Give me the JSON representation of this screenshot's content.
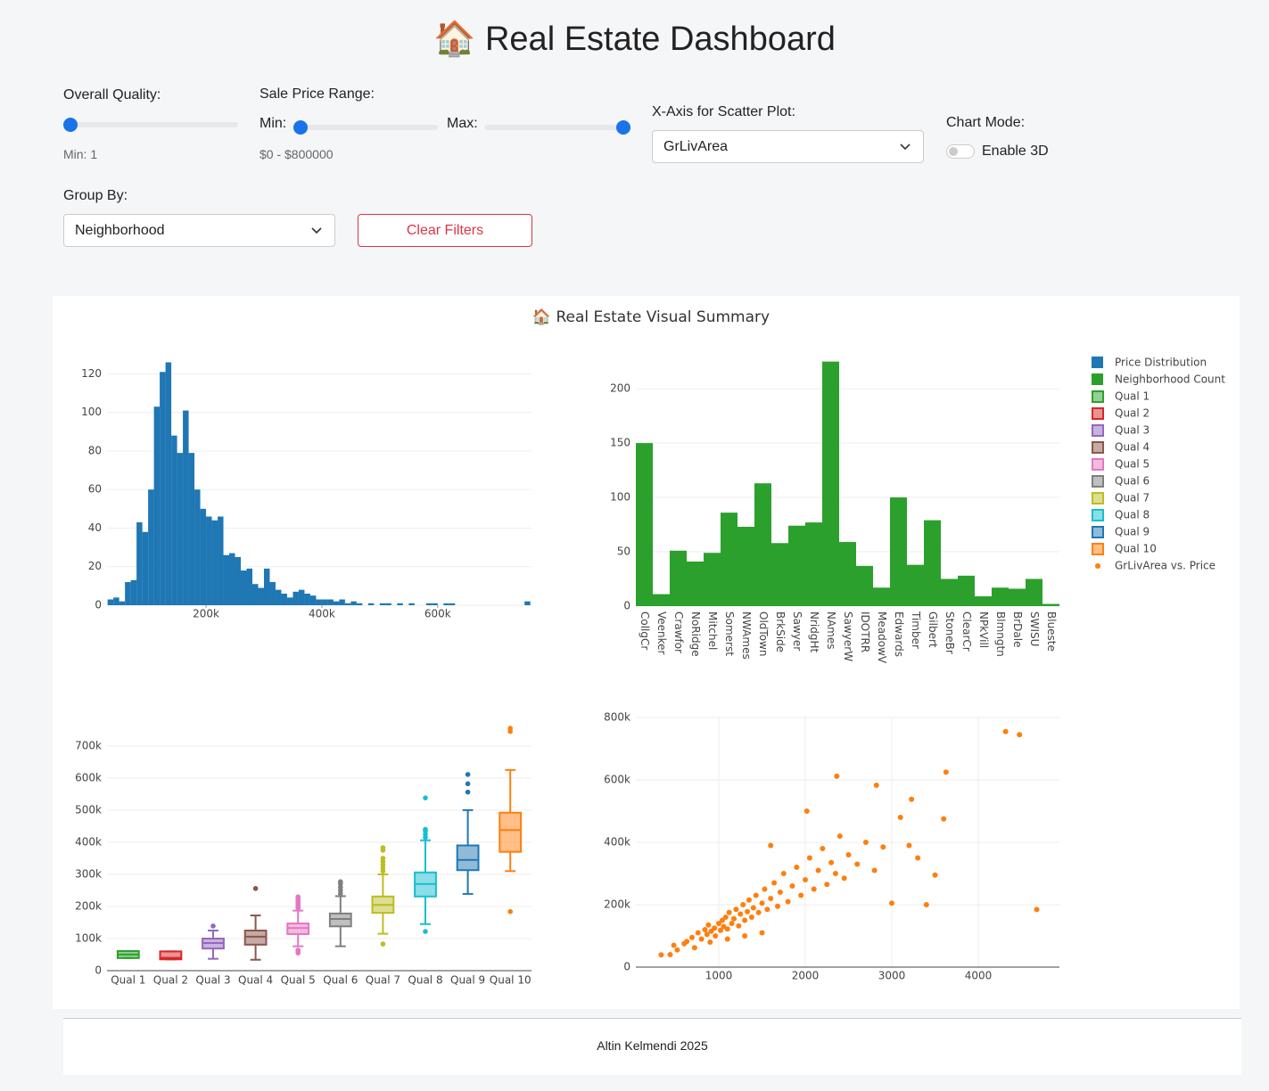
{
  "header": {
    "title": "🏠 Real Estate Dashboard"
  },
  "controls": {
    "overall_quality": {
      "label": "Overall Quality:",
      "readout": "Min: 1"
    },
    "sale_price": {
      "label": "Sale Price Range:",
      "min_label": "Min:",
      "max_label": "Max:",
      "readout": "$0 - $800000"
    },
    "x_axis": {
      "label": "X-Axis for Scatter Plot:",
      "value": "GrLivArea"
    },
    "chart_mode": {
      "label": "Chart Mode:",
      "toggle": "Enable 3D"
    },
    "group_by": {
      "label": "Group By:",
      "value": "Neighborhood"
    },
    "clear_button": "Clear Filters"
  },
  "figure": {
    "title": "🏠 Real Estate Visual Summary",
    "legend": "right"
  },
  "chart_data": [
    {
      "type": "histogram",
      "bins": [
        30000,
        40000,
        50000,
        60000,
        70000,
        80000,
        90000,
        100000,
        110000,
        120000,
        130000,
        140000,
        150000,
        160000,
        170000,
        180000,
        190000,
        200000,
        210000,
        220000,
        230000,
        240000,
        250000,
        260000,
        270000,
        280000,
        290000,
        300000,
        310000,
        320000,
        330000,
        340000,
        350000,
        360000,
        370000,
        380000,
        390000,
        400000,
        410000,
        420000,
        430000,
        440000,
        450000,
        460000,
        470000,
        480000,
        490000,
        500000,
        510000,
        520000,
        530000,
        540000,
        550000,
        560000,
        570000,
        580000,
        590000,
        600000,
        610000,
        620000,
        630000,
        640000,
        650000,
        660000,
        670000,
        680000,
        690000,
        700000,
        710000,
        720000,
        730000,
        740000,
        750000,
        760000
      ],
      "series": [
        {
          "name": "Price Distribution",
          "color": "#1f77b4",
          "values": [
            3,
            4,
            2,
            12,
            13,
            43,
            38,
            60,
            103,
            121,
            126,
            88,
            79,
            101,
            79,
            60,
            50,
            46,
            44,
            46,
            26,
            27,
            25,
            18,
            19,
            11,
            9,
            19,
            12,
            8,
            6,
            4,
            7,
            8,
            6,
            5,
            3,
            3,
            3,
            2,
            3,
            1,
            2,
            1,
            0,
            1,
            0,
            1,
            1,
            0,
            1,
            0,
            1,
            0,
            0,
            1,
            1,
            0,
            1,
            1,
            0,
            0,
            0,
            0,
            0,
            0,
            0,
            0,
            0,
            0,
            0,
            0,
            2
          ]
        }
      ],
      "xlim": [
        29000,
        762000
      ],
      "xticks": [
        {
          "value": 200000,
          "label": "200k"
        },
        {
          "value": 400000,
          "label": "400k"
        },
        {
          "value": 600000,
          "label": "600k"
        }
      ],
      "ylim": [
        0,
        129
      ],
      "yticks": [
        0,
        20,
        40,
        60,
        80,
        100,
        120
      ],
      "grid": true
    },
    {
      "type": "bar",
      "categories": [
        "CollgCr",
        "Veenker",
        "Crawfor",
        "NoRidge",
        "Mitchel",
        "Somerst",
        "NWAmes",
        "OldTown",
        "BrkSide",
        "Sawyer",
        "NridgHt",
        "NAmes",
        "SawyerW",
        "IDOTRR",
        "MeadowV",
        "Edwards",
        "Timber",
        "Gilbert",
        "StoneBr",
        "ClearCr",
        "NPkVill",
        "Blmngtn",
        "BrDale",
        "SWISU",
        "Blueste"
      ],
      "series": [
        {
          "name": "Neighborhood Count",
          "color": "#2ca02c",
          "values": [
            150,
            11,
            51,
            41,
            49,
            86,
            73,
            113,
            58,
            74,
            77,
            225,
            59,
            37,
            17,
            100,
            38,
            79,
            25,
            28,
            9,
            17,
            16,
            25,
            2
          ]
        }
      ],
      "ylim": [
        0,
        237
      ],
      "yticks": [
        0,
        50,
        100,
        150,
        200
      ],
      "grid": true
    },
    {
      "type": "box",
      "series": [
        {
          "name": "Qual 1",
          "color": "#2ca02c",
          "min": 39300,
          "q1": 39300,
          "median": 50150,
          "q3": 61000,
          "max": 61000,
          "outliers": []
        },
        {
          "name": "Qual 2",
          "color": "#d62728",
          "min": 35311,
          "q1": 35311,
          "median": 40000,
          "q3": 60000,
          "max": 60000,
          "outliers": []
        },
        {
          "name": "Qual 3",
          "color": "#9467bd",
          "min": 37000,
          "q1": 69000,
          "median": 86000,
          "q3": 100000,
          "max": 125000,
          "outliers": [
            139000
          ]
        },
        {
          "name": "Qual 4",
          "color": "#8c564b",
          "min": 34000,
          "q1": 81000,
          "median": 106000,
          "q3": 125000,
          "max": 172000,
          "outliers": [
            256000
          ]
        },
        {
          "name": "Qual 5",
          "color": "#e377c2",
          "min": 76000,
          "q1": 114000,
          "median": 133000,
          "q3": 147000,
          "max": 187000,
          "outliers": [
            55000,
            60000,
            64000,
            195000,
            200000,
            205000,
            210000,
            215000,
            220000,
            225000,
            230000
          ]
        },
        {
          "name": "Qual 6",
          "color": "#7f7f7f",
          "min": 76000,
          "q1": 138000,
          "median": 161000,
          "q3": 178000,
          "max": 232000,
          "outliers": [
            240000,
            250000,
            260000,
            270000,
            277000
          ]
        },
        {
          "name": "Qual 7",
          "color": "#bcbd22",
          "min": 115000,
          "q1": 180000,
          "median": 205000,
          "q3": 231000,
          "max": 300000,
          "outliers": [
            83000,
            310000,
            320000,
            330000,
            340000,
            350000,
            375000,
            383000
          ]
        },
        {
          "name": "Qual 8",
          "color": "#17becf",
          "min": 145000,
          "q1": 231000,
          "median": 270000,
          "q3": 306000,
          "max": 406000,
          "outliers": [
            122000,
            415000,
            425000,
            435000,
            440000,
            538000
          ]
        },
        {
          "name": "Qual 9",
          "color": "#1f77b4",
          "min": 239000,
          "q1": 313000,
          "median": 345000,
          "q3": 390000,
          "max": 500000,
          "outliers": [
            556000,
            582000,
            611000
          ]
        },
        {
          "name": "Qual 10",
          "color": "#ff7f0e",
          "min": 310000,
          "q1": 370000,
          "median": 438000,
          "q3": 492000,
          "max": 625000,
          "outliers": [
            184000,
            745000,
            755000
          ]
        }
      ],
      "ylim": [
        0,
        780000
      ],
      "yticks": [
        0,
        {
          "value": 100000,
          "label": "100k"
        },
        {
          "value": 200000,
          "label": "200k"
        },
        {
          "value": 300000,
          "label": "300k"
        },
        {
          "value": 400000,
          "label": "400k"
        },
        {
          "value": 500000,
          "label": "500k"
        },
        {
          "value": 600000,
          "label": "600k"
        },
        {
          "value": 700000,
          "label": "700k"
        }
      ],
      "grid": true
    },
    {
      "type": "scatter",
      "series": [
        {
          "name": "GrLivArea vs. Price",
          "color": "#ff7f0e",
          "x": [
            334,
            438,
            480,
            520,
            600,
            630,
            690,
            720,
            760,
            800,
            840,
            864,
            880,
            900,
            912,
            950,
            960,
            1000,
            1020,
            1040,
            1056,
            1080,
            1100,
            1120,
            1150,
            1175,
            1200,
            1230,
            1250,
            1280,
            1300,
            1330,
            1350,
            1380,
            1400,
            1430,
            1460,
            1500,
            1530,
            1560,
            1600,
            1640,
            1680,
            1710,
            1750,
            1800,
            1850,
            1900,
            1950,
            2000,
            2050,
            2100,
            2150,
            2200,
            2250,
            2300,
            2350,
            2400,
            2450,
            2500,
            2600,
            2700,
            2800,
            2900,
            3000,
            3100,
            3200,
            3300,
            3400,
            3500,
            3600,
            3627,
            4316,
            4476,
            4676,
            2364,
            2822,
            3228,
            1600,
            2018,
            1500,
            1300,
            1100
          ],
          "y": [
            39300,
            40000,
            70000,
            55000,
            75000,
            82000,
            95000,
            62000,
            110000,
            90000,
            120000,
            105000,
            135000,
            80000,
            115000,
            125000,
            100000,
            140000,
            118000,
            150000,
            130000,
            160000,
            122000,
            175000,
            140000,
            155000,
            185000,
            132000,
            170000,
            200000,
            150000,
            178000,
            215000,
            160000,
            190000,
            230000,
            175000,
            205000,
            250000,
            185000,
            220000,
            270000,
            195000,
            240000,
            300000,
            210000,
            260000,
            320000,
            230000,
            280000,
            350000,
            250000,
            310000,
            380000,
            265000,
            335000,
            300000,
            420000,
            285000,
            360000,
            330000,
            400000,
            310000,
            385000,
            205000,
            480000,
            390000,
            350000,
            200000,
            295000,
            475000,
            625000,
            755000,
            745000,
            184750,
            611657,
            582933,
            538000,
            390000,
            500000,
            110000,
            100000,
            90000
          ]
        }
      ],
      "xlim": [
        41,
        4938
      ],
      "xticks": [
        1000,
        2000,
        3000,
        4000
      ],
      "ylim": [
        0,
        800000
      ],
      "yticks": [
        0,
        {
          "value": 200000,
          "label": "200k"
        },
        {
          "value": 400000,
          "label": "400k"
        },
        {
          "value": 600000,
          "label": "600k"
        },
        {
          "value": 800000,
          "label": "800k"
        }
      ],
      "grid": true,
      "xgrid": true
    }
  ],
  "footer": {
    "text": "Altin Kelmendi 2025"
  }
}
